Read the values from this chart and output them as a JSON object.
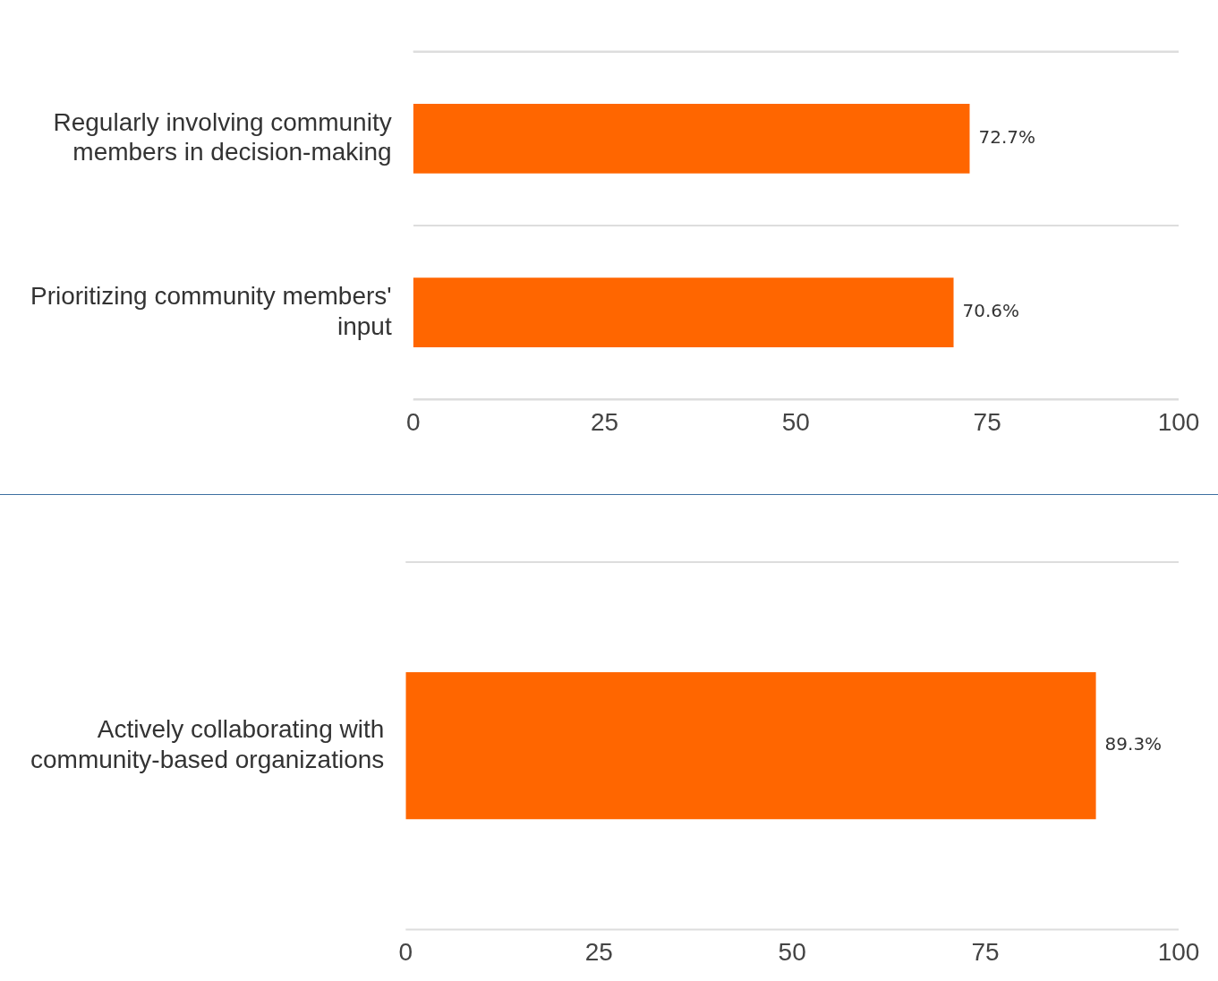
{
  "chart_data": [
    {
      "type": "bar",
      "orientation": "horizontal",
      "categories": [
        "Regularly involving community members in decision-making",
        "Prioritizing community members' input"
      ],
      "values": [
        72.7,
        70.6
      ],
      "color": "#ff6600",
      "value_labels": [
        "72.7%",
        "70.6%"
      ],
      "xlim": [
        0,
        100
      ],
      "xticks": [
        0,
        25,
        50,
        75,
        100
      ],
      "grid": "y"
    },
    {
      "type": "bar",
      "orientation": "horizontal",
      "categories": [
        "Actively collaborating with community-based organizations"
      ],
      "values": [
        89.3
      ],
      "color": "#ff6600",
      "value_labels": [
        "89.3%"
      ],
      "xlim": [
        0,
        100
      ],
      "xticks": [
        0,
        25,
        50,
        75,
        100
      ]
    }
  ]
}
